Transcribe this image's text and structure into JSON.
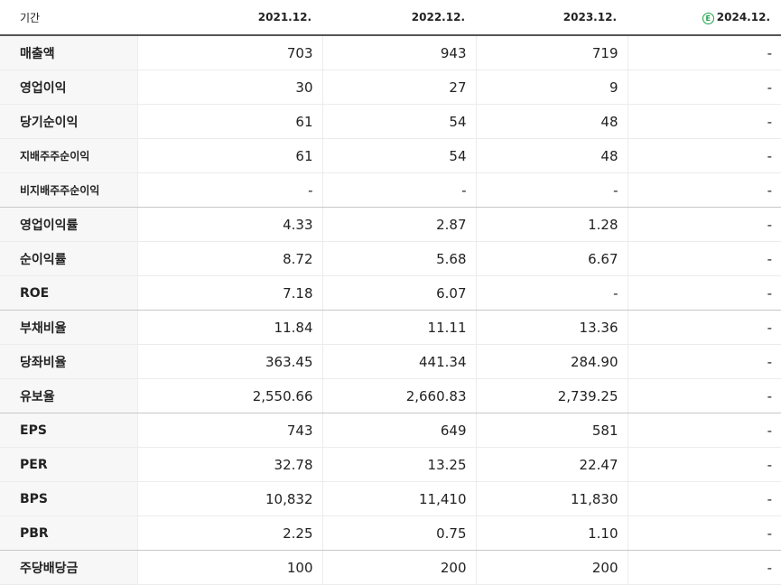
{
  "table": {
    "header": {
      "label": "기간",
      "periods": [
        "2021.12.",
        "2022.12.",
        "2023.12.",
        "2024.12."
      ],
      "estimate_marker": "E"
    },
    "rows": [
      {
        "label": "매출액",
        "values": [
          "703",
          "943",
          "719",
          "-"
        ]
      },
      {
        "label": "영업이익",
        "values": [
          "30",
          "27",
          "9",
          "-"
        ]
      },
      {
        "label": "당기순이익",
        "values": [
          "61",
          "54",
          "48",
          "-"
        ]
      },
      {
        "label": "지배주주순이익",
        "values": [
          "61",
          "54",
          "48",
          "-"
        ]
      },
      {
        "label": "비지배주주순이익",
        "values": [
          "-",
          "-",
          "-",
          "-"
        ]
      },
      {
        "label": "영업이익률",
        "values": [
          "4.33",
          "2.87",
          "1.28",
          "-"
        ]
      },
      {
        "label": "순이익률",
        "values": [
          "8.72",
          "5.68",
          "6.67",
          "-"
        ]
      },
      {
        "label": "ROE",
        "values": [
          "7.18",
          "6.07",
          "-",
          "-"
        ]
      },
      {
        "label": "부채비율",
        "values": [
          "11.84",
          "11.11",
          "13.36",
          "-"
        ]
      },
      {
        "label": "당좌비율",
        "values": [
          "363.45",
          "441.34",
          "284.90",
          "-"
        ]
      },
      {
        "label": "유보율",
        "values": [
          "2,550.66",
          "2,660.83",
          "2,739.25",
          "-"
        ]
      },
      {
        "label": "EPS",
        "values": [
          "743",
          "649",
          "581",
          "-"
        ]
      },
      {
        "label": "PER",
        "values": [
          "32.78",
          "13.25",
          "22.47",
          "-"
        ]
      },
      {
        "label": "BPS",
        "values": [
          "10,832",
          "11,410",
          "11,830",
          "-"
        ]
      },
      {
        "label": "PBR",
        "values": [
          "2.25",
          "0.75",
          "1.10",
          "-"
        ]
      },
      {
        "label": "주당배당금",
        "values": [
          "100",
          "200",
          "200",
          "-"
        ]
      }
    ]
  }
}
